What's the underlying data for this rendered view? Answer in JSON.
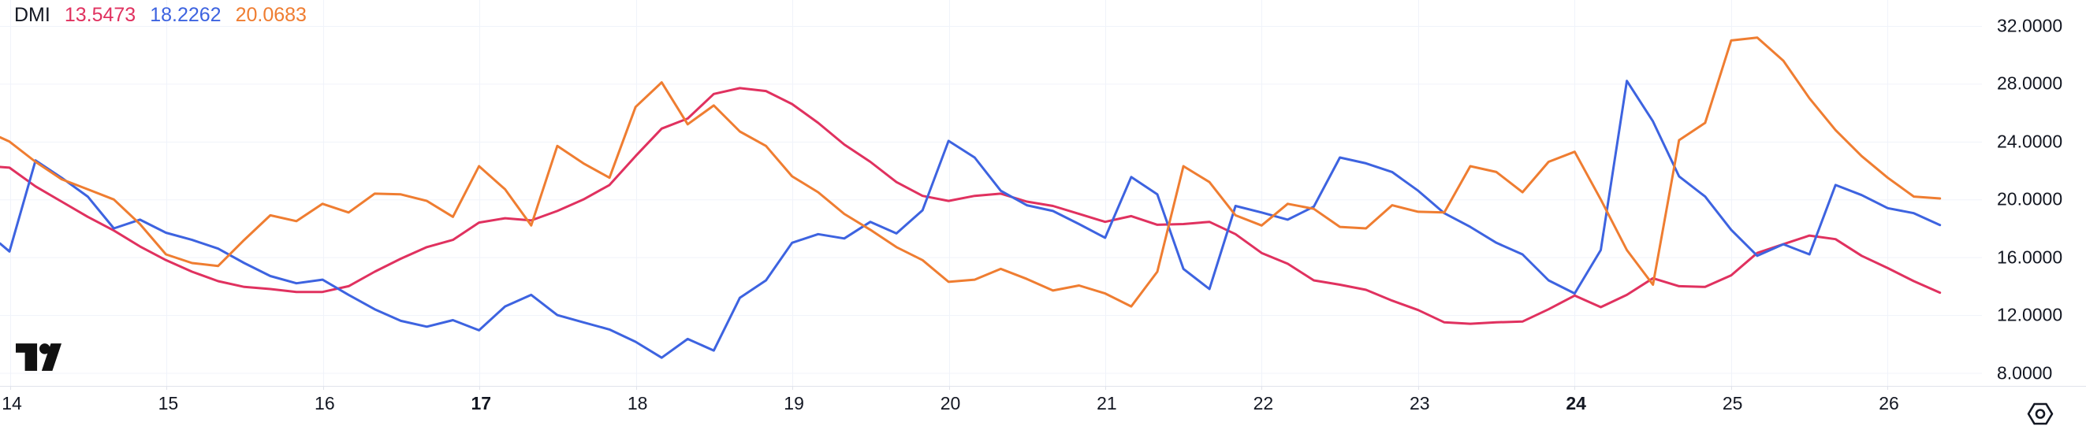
{
  "legend": {
    "title": "DMI",
    "values": [
      {
        "text": "13.5473",
        "color": "#e0315f"
      },
      {
        "text": "18.2262",
        "color": "#3d63e0"
      },
      {
        "text": "20.0683",
        "color": "#ef7d31"
      }
    ]
  },
  "y_axis": {
    "ticks": [
      "32.0000",
      "28.0000",
      "24.0000",
      "20.0000",
      "16.0000",
      "12.0000",
      "8.0000"
    ]
  },
  "x_axis": {
    "ticks": [
      {
        "label": "14",
        "bold": false
      },
      {
        "label": "15",
        "bold": false
      },
      {
        "label": "16",
        "bold": false
      },
      {
        "label": "17",
        "bold": true
      },
      {
        "label": "18",
        "bold": false
      },
      {
        "label": "19",
        "bold": false
      },
      {
        "label": "20",
        "bold": false
      },
      {
        "label": "21",
        "bold": false
      },
      {
        "label": "22",
        "bold": false
      },
      {
        "label": "23",
        "bold": false
      },
      {
        "label": "24",
        "bold": true
      },
      {
        "label": "25",
        "bold": false
      },
      {
        "label": "26",
        "bold": false
      }
    ]
  },
  "colors": {
    "background": "#ffffff",
    "grid": "#f0f3fa",
    "axis_separator": "#e0e3eb",
    "text": "#131722",
    "logo": "#111111",
    "icon": "#131722"
  },
  "chart_data": {
    "type": "line",
    "title": "DMI",
    "xlabel": "",
    "ylabel": "",
    "grid": true,
    "legend_position": "top-left",
    "y_gridlines": [
      32,
      28,
      24,
      20,
      16,
      12,
      8
    ],
    "ylim_visible": [
      7.1,
      33.8
    ],
    "x_days": [
      14,
      15,
      16,
      17,
      18,
      19,
      20,
      21,
      22,
      23,
      24,
      25,
      26
    ],
    "points_per_day": 6,
    "series": [
      {
        "name": "crimson-line",
        "current_value": "13.5473",
        "color": "#e0315f",
        "values": [
          22.25,
          22.2,
          20.9,
          19.85,
          18.8,
          17.85,
          16.75,
          15.8,
          15.0,
          14.35,
          13.95,
          13.8,
          13.6,
          13.6,
          14.0,
          15.0,
          15.9,
          16.7,
          17.2,
          18.4,
          18.7,
          18.55,
          19.2,
          20.0,
          21.0,
          23.0,
          24.9,
          25.6,
          27.3,
          27.7,
          27.5,
          26.6,
          25.3,
          23.8,
          22.6,
          21.2,
          20.25,
          19.9,
          20.25,
          20.4,
          19.85,
          19.55,
          19.0,
          18.45,
          18.85,
          18.25,
          18.3,
          18.45,
          17.6,
          16.3,
          15.55,
          14.4,
          14.1,
          13.75,
          13.0,
          12.35,
          11.5,
          11.4,
          11.5,
          11.55,
          12.4,
          13.35,
          12.55,
          13.4,
          14.55,
          14.0,
          13.95,
          14.75,
          16.3,
          16.9,
          17.5,
          17.25,
          16.1,
          15.25,
          14.35,
          13.55
        ]
      },
      {
        "name": "blue-line",
        "current_value": "18.2262",
        "color": "#3d63e0",
        "values": [
          16.95,
          16.4,
          22.7,
          21.5,
          20.2,
          18.0,
          18.6,
          17.7,
          17.2,
          16.6,
          15.6,
          14.7,
          14.2,
          14.45,
          13.4,
          12.4,
          11.6,
          11.2,
          11.65,
          10.95,
          12.6,
          13.4,
          12.0,
          11.5,
          11.0,
          10.15,
          9.05,
          10.35,
          9.55,
          13.2,
          14.4,
          17.0,
          17.6,
          17.3,
          18.45,
          17.65,
          19.25,
          24.05,
          22.9,
          20.6,
          19.6,
          19.2,
          18.3,
          17.35,
          21.55,
          20.35,
          15.2,
          13.8,
          19.55,
          19.1,
          18.6,
          19.5,
          22.9,
          22.5,
          21.9,
          20.6,
          19.05,
          18.1,
          17.0,
          16.2,
          14.4,
          13.5,
          16.5,
          28.2,
          25.4,
          21.6,
          20.2,
          17.9,
          16.1,
          16.9,
          16.2,
          21.0,
          20.3,
          19.4,
          19.05,
          18.23
        ]
      },
      {
        "name": "orange-line",
        "current_value": "20.0683",
        "color": "#ef7d31",
        "values": [
          24.3,
          24.0,
          22.6,
          21.4,
          20.7,
          20.0,
          18.3,
          16.2,
          15.6,
          15.4,
          17.2,
          18.9,
          18.5,
          19.7,
          19.1,
          20.4,
          20.35,
          19.9,
          18.8,
          22.3,
          20.7,
          18.2,
          23.7,
          22.5,
          21.5,
          26.4,
          28.1,
          25.2,
          26.5,
          24.7,
          23.7,
          21.6,
          20.5,
          19.0,
          17.9,
          16.7,
          15.8,
          14.3,
          14.45,
          15.2,
          14.5,
          13.7,
          14.05,
          13.5,
          12.6,
          15.0,
          22.3,
          21.2,
          18.9,
          18.2,
          19.7,
          19.35,
          18.1,
          18.0,
          19.6,
          19.15,
          19.1,
          22.3,
          21.9,
          20.5,
          22.6,
          23.3,
          20.0,
          16.5,
          14.1,
          24.1,
          25.3,
          31.0,
          31.2,
          29.6,
          27.0,
          24.8,
          23.0,
          21.5,
          20.2,
          20.07
        ]
      }
    ]
  }
}
